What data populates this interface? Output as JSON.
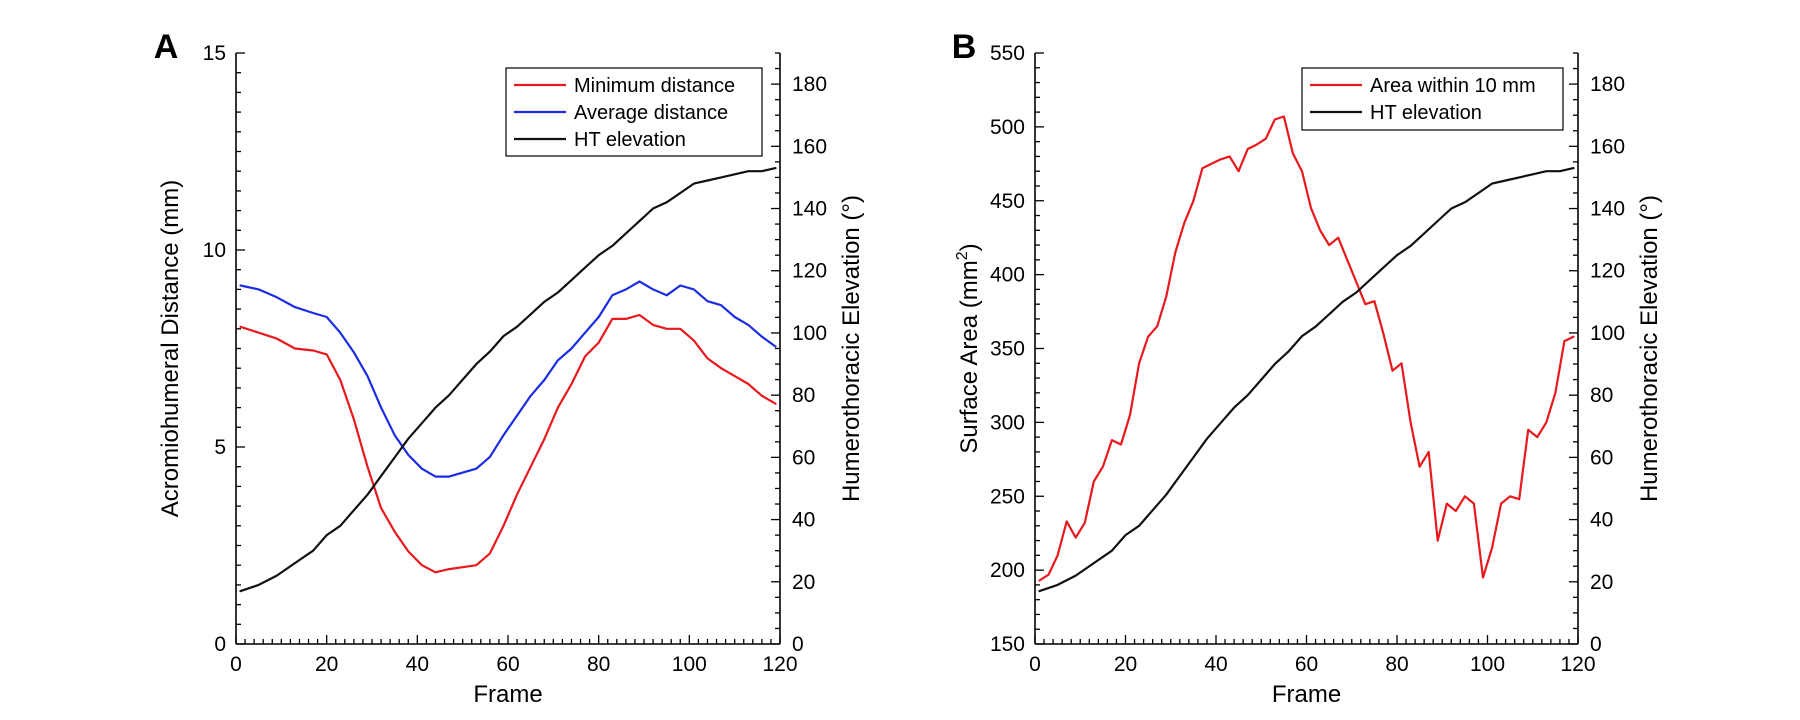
{
  "chart_data": [
    {
      "type": "line",
      "panel_label": "A",
      "xlabel": "Frame",
      "ylabel": "Acromiohumeral Distance (mm)",
      "y2label": "Humerothoracic Elevation (°)",
      "xlim": [
        0,
        120
      ],
      "ylim": [
        0,
        15
      ],
      "y2lim": [
        0,
        190
      ],
      "xticks": [
        "0",
        "20",
        "40",
        "60",
        "80",
        "100",
        "120"
      ],
      "yticks": [
        "0",
        "5",
        "10",
        "15"
      ],
      "y2ticks": [
        "0",
        "20",
        "40",
        "60",
        "80",
        "100",
        "120",
        "140",
        "160",
        "180"
      ],
      "legend_position": "top-right",
      "series": [
        {
          "name": "Minimum distance",
          "color": "#e8191d",
          "axis": "left",
          "x": [
            1,
            5,
            9,
            13,
            17,
            20,
            23,
            26,
            29,
            32,
            35,
            38,
            41,
            44,
            47,
            50,
            53,
            56,
            59,
            62,
            65,
            68,
            71,
            74,
            77,
            80,
            83,
            86,
            89,
            92,
            95,
            98,
            101,
            104,
            107,
            110,
            113,
            116,
            119
          ],
          "y": [
            8.05,
            7.9,
            7.75,
            7.5,
            7.45,
            7.35,
            6.7,
            5.7,
            4.5,
            3.45,
            2.85,
            2.35,
            2.0,
            1.82,
            1.9,
            1.95,
            2.0,
            2.3,
            3.0,
            3.8,
            4.5,
            5.2,
            6.0,
            6.6,
            7.3,
            7.65,
            8.25,
            8.25,
            8.35,
            8.1,
            8.0,
            8.0,
            7.7,
            7.25,
            7.0,
            6.8,
            6.6,
            6.3,
            6.1
          ]
        },
        {
          "name": "Average distance",
          "color": "#1b2de3",
          "axis": "left",
          "x": [
            1,
            5,
            9,
            13,
            17,
            20,
            23,
            26,
            29,
            32,
            35,
            38,
            41,
            44,
            47,
            50,
            53,
            56,
            59,
            62,
            65,
            68,
            71,
            74,
            77,
            80,
            83,
            86,
            89,
            92,
            95,
            98,
            101,
            104,
            107,
            110,
            113,
            116,
            119
          ],
          "y": [
            9.1,
            9.0,
            8.8,
            8.55,
            8.4,
            8.3,
            7.9,
            7.4,
            6.8,
            6.0,
            5.3,
            4.8,
            4.45,
            4.25,
            4.25,
            4.35,
            4.45,
            4.75,
            5.3,
            5.8,
            6.3,
            6.7,
            7.2,
            7.5,
            7.9,
            8.3,
            8.85,
            9.0,
            9.2,
            9.0,
            8.85,
            9.1,
            9.0,
            8.7,
            8.6,
            8.3,
            8.1,
            7.8,
            7.55
          ]
        },
        {
          "name": "HT elevation",
          "color": "#111111",
          "axis": "right",
          "x": [
            1,
            5,
            9,
            13,
            17,
            20,
            23,
            26,
            29,
            32,
            35,
            38,
            41,
            44,
            47,
            50,
            53,
            56,
            59,
            62,
            65,
            68,
            71,
            74,
            77,
            80,
            83,
            86,
            89,
            92,
            95,
            98,
            101,
            104,
            107,
            110,
            113,
            116,
            119
          ],
          "y": [
            17,
            19,
            22,
            26,
            30,
            35,
            38,
            43,
            48,
            54,
            60,
            66,
            71,
            76,
            80,
            85,
            90,
            94,
            99,
            102,
            106,
            110,
            113,
            117,
            121,
            125,
            128,
            132,
            136,
            140,
            142,
            145,
            148,
            149,
            150,
            151,
            152,
            152,
            153
          ]
        }
      ]
    },
    {
      "type": "line",
      "panel_label": "B",
      "xlabel": "Frame",
      "ylabel": "Surface Area (mm",
      "ylabel_sup": "2",
      "ylabel_tail": ")",
      "y2label": "Humerothoracic Elevation (°)",
      "xlim": [
        0,
        120
      ],
      "ylim": [
        150,
        550
      ],
      "y2lim": [
        0,
        190
      ],
      "xticks": [
        "0",
        "20",
        "40",
        "60",
        "80",
        "100",
        "120"
      ],
      "yticks": [
        "150",
        "200",
        "250",
        "300",
        "350",
        "400",
        "450",
        "500",
        "550"
      ],
      "y2ticks": [
        "0",
        "20",
        "40",
        "60",
        "80",
        "100",
        "120",
        "140",
        "160",
        "180"
      ],
      "legend_position": "top-right",
      "series": [
        {
          "name": "Area within 10 mm",
          "color": "#e8191d",
          "axis": "left",
          "x": [
            1,
            3,
            5,
            7,
            9,
            11,
            13,
            15,
            17,
            19,
            21,
            23,
            25,
            27,
            29,
            31,
            33,
            35,
            37,
            39,
            41,
            43,
            45,
            47,
            49,
            51,
            53,
            55,
            57,
            59,
            61,
            63,
            65,
            67,
            69,
            71,
            73,
            75,
            77,
            79,
            81,
            83,
            85,
            87,
            89,
            91,
            93,
            95,
            97,
            99,
            101,
            103,
            105,
            107,
            109,
            111,
            113,
            115,
            117,
            119
          ],
          "y": [
            193,
            197,
            210,
            233,
            222,
            232,
            260,
            270,
            288,
            285,
            305,
            340,
            358,
            365,
            385,
            415,
            435,
            450,
            472,
            475,
            478,
            480,
            470,
            485,
            488,
            492,
            505,
            507,
            482,
            470,
            445,
            430,
            420,
            425,
            410,
            395,
            380,
            382,
            360,
            335,
            340,
            300,
            270,
            280,
            220,
            245,
            240,
            250,
            245,
            195,
            215,
            245,
            250,
            248,
            295,
            290,
            300,
            320,
            355,
            358
          ]
        },
        {
          "name": "HT elevation",
          "color": "#111111",
          "axis": "right",
          "x": [
            1,
            5,
            9,
            13,
            17,
            20,
            23,
            26,
            29,
            32,
            35,
            38,
            41,
            44,
            47,
            50,
            53,
            56,
            59,
            62,
            65,
            68,
            71,
            74,
            77,
            80,
            83,
            86,
            89,
            92,
            95,
            98,
            101,
            104,
            107,
            110,
            113,
            116,
            119
          ],
          "y": [
            17,
            19,
            22,
            26,
            30,
            35,
            38,
            43,
            48,
            54,
            60,
            66,
            71,
            76,
            80,
            85,
            90,
            94,
            99,
            102,
            106,
            110,
            113,
            117,
            121,
            125,
            128,
            132,
            136,
            140,
            142,
            145,
            148,
            149,
            150,
            151,
            152,
            152,
            153
          ]
        }
      ]
    }
  ]
}
